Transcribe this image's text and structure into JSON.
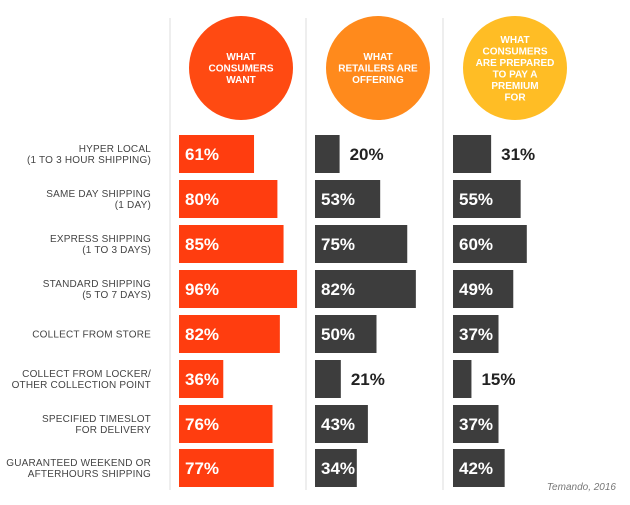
{
  "chart_data": {
    "type": "bar",
    "orientation": "horizontal",
    "categories": [
      "HYPER LOCAL\n(1 TO 3 HOUR SHIPPING)",
      "SAME DAY SHIPPING\n(1 DAY)",
      "EXPRESS SHIPPING\n(1 TO 3 DAYS)",
      "STANDARD SHIPPING\n(5 TO 7 DAYS)",
      "COLLECT FROM STORE",
      "COLLECT FROM LOCKER/\nOTHER COLLECTION POINT",
      "SPECIFIED TIMESLOT\nFOR DELIVERY",
      "GUARANTEED WEEKEND OR\nAFTERHOURS SHIPPING"
    ],
    "series": [
      {
        "name": "WHAT\nCONSUMERS\nWANT",
        "values": [
          61,
          80,
          85,
          96,
          82,
          36,
          76,
          77
        ],
        "labels": [
          "61%",
          "80%",
          "85%",
          "96%",
          "82%",
          "36%",
          "76%",
          "77%"
        ],
        "color": "#ff3d0f",
        "header_color": "#ff4a12"
      },
      {
        "name": "WHAT\nRETAILERS ARE\nOFFERING",
        "values": [
          20,
          53,
          75,
          82,
          50,
          21,
          43,
          34
        ],
        "labels": [
          "20%",
          "53%",
          "75%",
          "82%",
          "50%",
          "21%",
          "43%",
          "34%"
        ],
        "color": "#3d3d3d",
        "header_color": "#ff8a1c"
      },
      {
        "name": "WHAT\nCONSUMERS\nARE PREPARED\nTO PAY A\nPREMIUM\nFOR",
        "values": [
          31,
          55,
          60,
          49,
          37,
          15,
          37,
          42
        ],
        "labels": [
          "31%",
          "55%",
          "60%",
          "49%",
          "37%",
          "15%",
          "37%",
          "42%"
        ],
        "color": "#3d3d3d",
        "header_color": "#ffbd25"
      }
    ],
    "xlim": [
      0,
      100
    ],
    "grid": false,
    "source": "Temando, 2016",
    "divider_color": "#dddddd",
    "label_color": "#ffffff",
    "outside_label_color": "#222222"
  }
}
